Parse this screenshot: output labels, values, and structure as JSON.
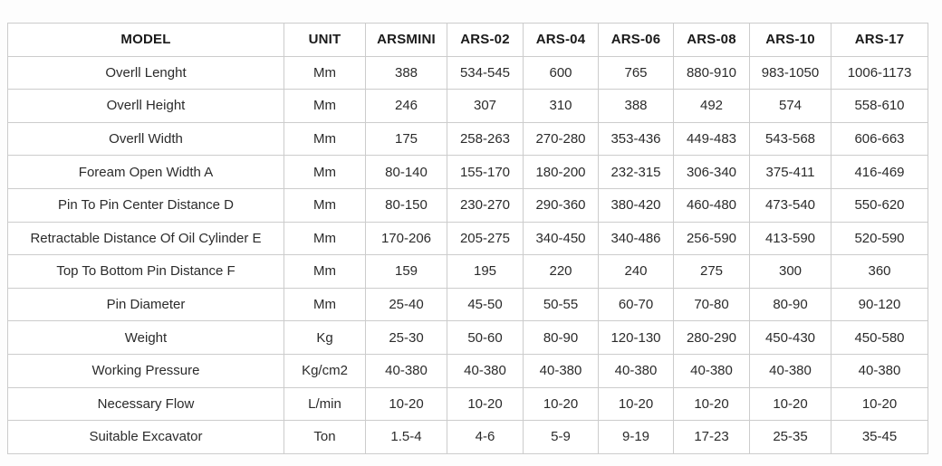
{
  "table": {
    "columns": [
      "MODEL",
      "UNIT",
      "ARSMINI",
      "ARS-02",
      "ARS-04",
      "ARS-06",
      "ARS-08",
      "ARS-10",
      "ARS-17"
    ],
    "rows": [
      {
        "model": "Overll Lenght",
        "unit": "Mm",
        "values": [
          "388",
          "534-545",
          "600",
          "765",
          "880-910",
          "983-1050",
          "1006-1173"
        ]
      },
      {
        "model": "Overll Height",
        "unit": "Mm",
        "values": [
          "246",
          "307",
          "310",
          "388",
          "492",
          "574",
          "558-610"
        ]
      },
      {
        "model": "Overll Width",
        "unit": "Mm",
        "values": [
          "175",
          "258-263",
          "270-280",
          "353-436",
          "449-483",
          "543-568",
          "606-663"
        ]
      },
      {
        "model": "Foream Open Width A",
        "unit": "Mm",
        "values": [
          "80-140",
          "155-170",
          "180-200",
          "232-315",
          "306-340",
          "375-411",
          "416-469"
        ]
      },
      {
        "model": "Pin To Pin Center Distance D",
        "unit": "Mm",
        "values": [
          "80-150",
          "230-270",
          "290-360",
          "380-420",
          "460-480",
          "473-540",
          "550-620"
        ]
      },
      {
        "model": "Retractable Distance Of Oil Cylinder E",
        "unit": "Mm",
        "values": [
          "170-206",
          "205-275",
          "340-450",
          "340-486",
          "256-590",
          "413-590",
          "520-590"
        ]
      },
      {
        "model": "Top To Bottom Pin Distance F",
        "unit": "Mm",
        "values": [
          "159",
          "195",
          "220",
          "240",
          "275",
          "300",
          "360"
        ]
      },
      {
        "model": "Pin Diameter",
        "unit": "Mm",
        "values": [
          "25-40",
          "45-50",
          "50-55",
          "60-70",
          "70-80",
          "80-90",
          "90-120"
        ]
      },
      {
        "model": "Weight",
        "unit": "Kg",
        "values": [
          "25-30",
          "50-60",
          "80-90",
          "120-130",
          "280-290",
          "450-430",
          "450-580"
        ]
      },
      {
        "model": "Working Pressure",
        "unit": "Kg/cm2",
        "values": [
          "40-380",
          "40-380",
          "40-380",
          "40-380",
          "40-380",
          "40-380",
          "40-380"
        ]
      },
      {
        "model": "Necessary Flow",
        "unit": "L/min",
        "values": [
          "10-20",
          "10-20",
          "10-20",
          "10-20",
          "10-20",
          "10-20",
          "10-20"
        ]
      },
      {
        "model": "Suitable Excavator",
        "unit": "Ton",
        "values": [
          "1.5-4",
          "4-6",
          "5-9",
          "9-19",
          "17-23",
          "25-35",
          "35-45"
        ]
      }
    ]
  }
}
